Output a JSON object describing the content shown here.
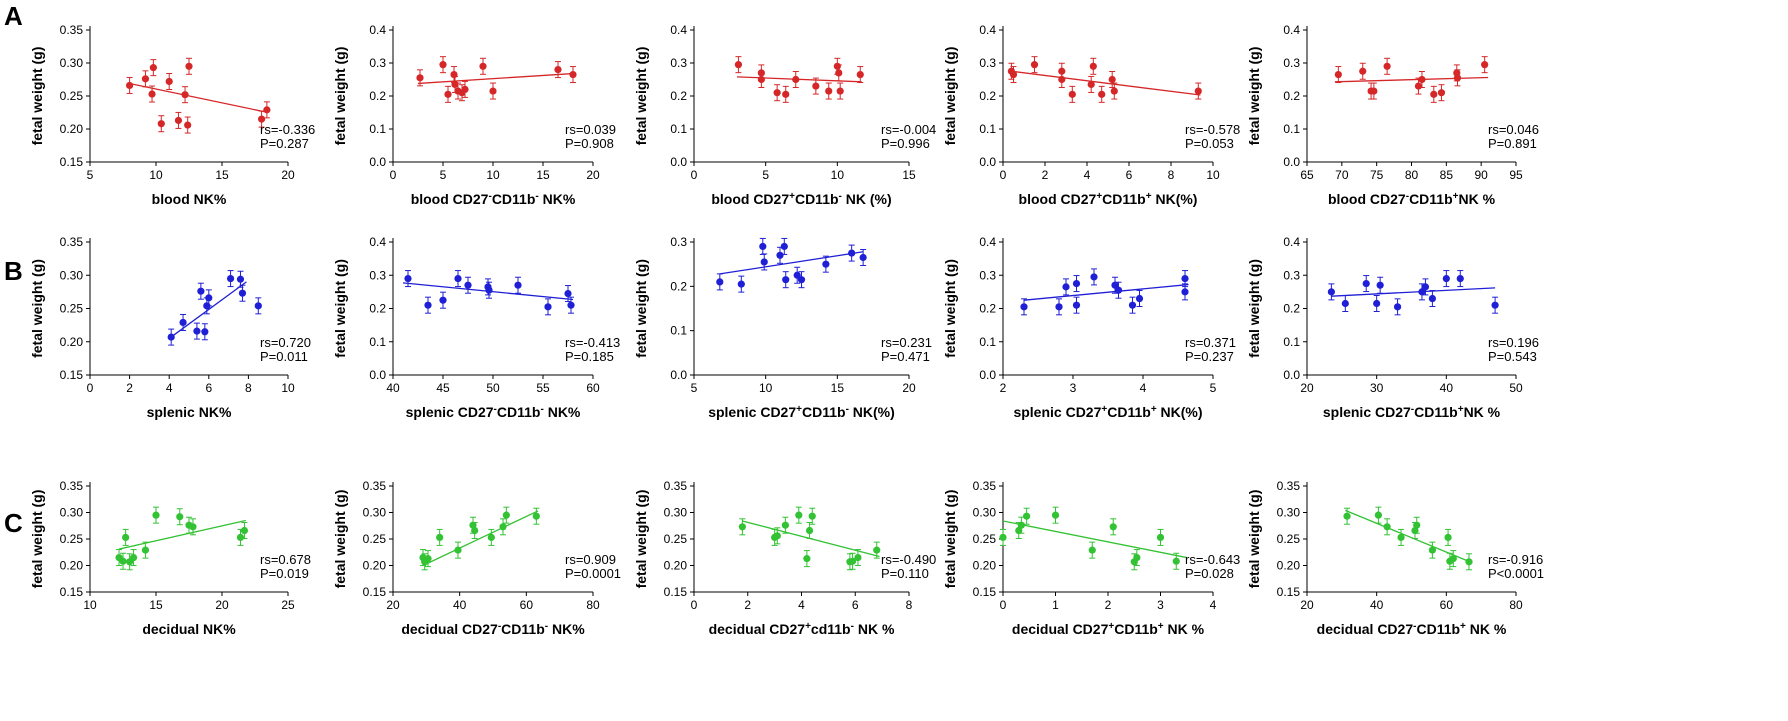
{
  "panel_labels": [
    "A",
    "B",
    "C"
  ],
  "colors": {
    "A": "#d62728",
    "B": "#1f1fd6",
    "C": "#33c233"
  },
  "chart_data": [
    {
      "type": "scatter",
      "row": "A",
      "col": 0,
      "color": "#d62728",
      "xlabel": "blood  NK%",
      "ylabel": "fetal weight (g)",
      "xlim": [
        5,
        20
      ],
      "ylim": [
        0.15,
        0.35
      ],
      "xticks": [
        "5",
        "10",
        "15",
        "20"
      ],
      "yticks": [
        "0.15",
        "0.20",
        "0.25",
        "0.30",
        "0.35"
      ],
      "x": [
        8.0,
        9.2,
        9.7,
        9.8,
        10.4,
        11.0,
        11.7,
        12.2,
        12.4,
        12.5,
        18.0,
        18.4
      ],
      "y": [
        0.266,
        0.276,
        0.253,
        0.293,
        0.208,
        0.272,
        0.213,
        0.252,
        0.206,
        0.295,
        0.215,
        0.229
      ],
      "fit": [
        [
          8.0,
          0.269
        ],
        [
          18.5,
          0.225
        ]
      ],
      "rs_text": "rs=-0.336",
      "p_text": "P=0.287"
    },
    {
      "type": "scatter",
      "row": "A",
      "col": 1,
      "color": "#d62728",
      "xlabel": "blood CD27-CD11b- NK%",
      "xlabel_parts": [
        [
          "blood CD27",
          ""
        ],
        [
          "-",
          "sup"
        ],
        [
          "CD11b",
          ""
        ],
        [
          "-",
          "sup"
        ],
        [
          " NK%",
          ""
        ]
      ],
      "ylabel": "fetal weight (g)",
      "xlim": [
        0,
        20
      ],
      "ylim": [
        0,
        0.4
      ],
      "xticks": [
        "0",
        "5",
        "10",
        "15",
        "20"
      ],
      "yticks": [
        "0.0",
        "0.1",
        "0.2",
        "0.3",
        "0.4"
      ],
      "x": [
        2.7,
        5.0,
        5.5,
        6.1,
        6.2,
        6.5,
        6.9,
        7.2,
        9.0,
        10.0,
        16.5,
        18.0
      ],
      "y": [
        0.255,
        0.295,
        0.205,
        0.265,
        0.235,
        0.215,
        0.21,
        0.22,
        0.29,
        0.215,
        0.28,
        0.265
      ],
      "fit": [
        [
          2.5,
          0.238
        ],
        [
          18.0,
          0.268
        ]
      ],
      "rs_text": "rs=0.039",
      "p_text": "P=0.908"
    },
    {
      "type": "scatter",
      "row": "A",
      "col": 2,
      "color": "#d62728",
      "xlabel": "blood CD27+CD11b- NK (%)",
      "xlabel_parts": [
        [
          "blood CD27",
          ""
        ],
        [
          "+",
          "sup"
        ],
        [
          "CD11b",
          ""
        ],
        [
          "-",
          "sup"
        ],
        [
          " NK (%)",
          ""
        ]
      ],
      "ylabel": "fetal weight (g)",
      "xlim": [
        0,
        15
      ],
      "ylim": [
        0,
        0.4
      ],
      "xticks": [
        "0",
        "5",
        "10",
        "15"
      ],
      "yticks": [
        "0.0",
        "0.1",
        "0.2",
        "0.3",
        "0.4"
      ],
      "x": [
        3.1,
        4.7,
        4.7,
        5.8,
        6.4,
        7.1,
        8.5,
        9.4,
        10.0,
        10.1,
        10.2,
        11.6
      ],
      "y": [
        0.295,
        0.27,
        0.25,
        0.21,
        0.205,
        0.25,
        0.23,
        0.215,
        0.29,
        0.27,
        0.215,
        0.265
      ],
      "fit": [
        [
          3.0,
          0.258
        ],
        [
          11.7,
          0.243
        ]
      ],
      "rs_text": "rs=-0.004",
      "p_text": "P=0.996"
    },
    {
      "type": "scatter",
      "row": "A",
      "col": 3,
      "color": "#d62728",
      "xlabel": "blood CD27+CD11b+ NK(%)",
      "xlabel_parts": [
        [
          "blood CD27",
          ""
        ],
        [
          "+",
          "sup"
        ],
        [
          "CD11b",
          ""
        ],
        [
          "+",
          "sup"
        ],
        [
          " NK(%)",
          ""
        ]
      ],
      "ylabel": "fetal weight (g)",
      "xlim": [
        0,
        10
      ],
      "ylim": [
        0,
        0.4
      ],
      "xticks": [
        "0",
        "2",
        "4",
        "6",
        "8",
        "10"
      ],
      "yticks": [
        "0.0",
        "0.1",
        "0.2",
        "0.3",
        "0.4"
      ],
      "x": [
        0.4,
        0.5,
        1.5,
        2.8,
        2.8,
        3.3,
        4.2,
        4.3,
        4.7,
        5.2,
        5.3,
        9.3
      ],
      "y": [
        0.275,
        0.265,
        0.295,
        0.275,
        0.25,
        0.205,
        0.235,
        0.29,
        0.205,
        0.25,
        0.215,
        0.215
      ],
      "fit": [
        [
          0.4,
          0.275
        ],
        [
          9.4,
          0.203
        ]
      ],
      "rs_text": "rs=-0.578",
      "p_text": "P=0.053"
    },
    {
      "type": "scatter",
      "row": "A",
      "col": 4,
      "color": "#d62728",
      "xlabel": "blood CD27-CD11b+NK %",
      "xlabel_parts": [
        [
          "blood CD27",
          ""
        ],
        [
          "-",
          "sup"
        ],
        [
          "CD11b",
          ""
        ],
        [
          "+",
          "sup"
        ],
        [
          "NK %",
          ""
        ]
      ],
      "ylabel": "fetal weight (g)",
      "xlim": [
        65,
        95
      ],
      "ylim": [
        0,
        0.4
      ],
      "xticks": [
        "65",
        "70",
        "75",
        "80",
        "85",
        "90",
        "95"
      ],
      "yticks": [
        "0.0",
        "0.1",
        "0.2",
        "0.3",
        "0.4"
      ],
      "x": [
        69.5,
        73.0,
        74.2,
        74.6,
        76.5,
        81.0,
        81.5,
        83.2,
        84.3,
        86.5,
        86.6,
        90.5
      ],
      "y": [
        0.265,
        0.275,
        0.215,
        0.215,
        0.29,
        0.23,
        0.25,
        0.205,
        0.21,
        0.27,
        0.255,
        0.295
      ],
      "fit": [
        [
          69.0,
          0.243
        ],
        [
          91.0,
          0.256
        ]
      ],
      "rs_text": "rs=0.046",
      "p_text": "P=0.891"
    },
    {
      "type": "scatter",
      "row": "B",
      "col": 0,
      "color": "#1f1fd6",
      "xlabel": "splenic NK%",
      "ylabel": "fetal weight (g)",
      "xlim": [
        0,
        10
      ],
      "ylim": [
        0.15,
        0.35
      ],
      "xticks": [
        "0",
        "2",
        "4",
        "6",
        "8",
        "10"
      ],
      "yticks": [
        "0.15",
        "0.20",
        "0.25",
        "0.30",
        "0.35"
      ],
      "x": [
        4.1,
        4.7,
        5.4,
        5.6,
        5.8,
        5.9,
        6.0,
        7.1,
        7.6,
        7.7,
        8.5
      ],
      "y": [
        0.207,
        0.229,
        0.216,
        0.276,
        0.215,
        0.254,
        0.266,
        0.295,
        0.294,
        0.273,
        0.254
      ],
      "fit": [
        [
          4.0,
          0.205
        ],
        [
          7.9,
          0.29
        ]
      ],
      "rs_text": "rs=0.720",
      "p_text": "P=0.011"
    },
    {
      "type": "scatter",
      "row": "B",
      "col": 1,
      "color": "#1f1fd6",
      "xlabel": "splenic CD27-CD11b- NK%",
      "xlabel_parts": [
        [
          "splenic CD27",
          ""
        ],
        [
          "-",
          "sup"
        ],
        [
          "CD11b",
          ""
        ],
        [
          "-",
          "sup"
        ],
        [
          " NK%",
          ""
        ]
      ],
      "ylabel": "fetal weight (g)",
      "xlim": [
        40,
        60
      ],
      "ylim": [
        0,
        0.4
      ],
      "xticks": [
        "40",
        "45",
        "50",
        "55",
        "60"
      ],
      "yticks": [
        "0.0",
        "0.1",
        "0.2",
        "0.3",
        "0.4"
      ],
      "x": [
        41.5,
        43.5,
        45.0,
        46.5,
        47.5,
        49.5,
        49.6,
        52.5,
        55.5,
        57.5,
        57.8
      ],
      "y": [
        0.29,
        0.21,
        0.225,
        0.29,
        0.27,
        0.265,
        0.255,
        0.27,
        0.205,
        0.245,
        0.21
      ],
      "fit": [
        [
          41.0,
          0.277
        ],
        [
          58.0,
          0.227
        ]
      ],
      "rs_text": "rs=-0.413",
      "p_text": "P=0.185"
    },
    {
      "type": "scatter",
      "row": "B",
      "col": 2,
      "color": "#1f1fd6",
      "xlabel": "splenic CD27+CD11b- NK(%)",
      "xlabel_parts": [
        [
          "splenic CD27",
          ""
        ],
        [
          "+",
          "sup"
        ],
        [
          "CD11b",
          ""
        ],
        [
          "-",
          "sup"
        ],
        [
          " NK(%)",
          ""
        ]
      ],
      "ylabel": "fetal weight (g)",
      "xlim": [
        5,
        20
      ],
      "ylim": [
        0,
        0.3
      ],
      "xticks": [
        "5",
        "10",
        "15",
        "20"
      ],
      "yticks": [
        "0.0",
        "0.1",
        "0.2",
        "0.3"
      ],
      "x": [
        6.8,
        8.3,
        9.8,
        9.9,
        11.0,
        11.3,
        11.4,
        12.2,
        12.5,
        14.2,
        16.0,
        16.8
      ],
      "y": [
        0.21,
        0.205,
        0.29,
        0.255,
        0.27,
        0.29,
        0.215,
        0.225,
        0.215,
        0.25,
        0.275,
        0.265
      ],
      "fit": [
        [
          6.8,
          0.228
        ],
        [
          16.8,
          0.278
        ]
      ],
      "rs_text": "rs=0.231",
      "p_text": "P=0.471"
    },
    {
      "type": "scatter",
      "row": "B",
      "col": 3,
      "color": "#1f1fd6",
      "xlabel": "splenic CD27+CD11b+ NK(%)",
      "xlabel_parts": [
        [
          "splenic CD27",
          ""
        ],
        [
          "+",
          "sup"
        ],
        [
          "CD11b",
          ""
        ],
        [
          "+",
          "sup"
        ],
        [
          " NK(%)",
          ""
        ]
      ],
      "ylabel": "fetal weight (g)",
      "xlim": [
        2,
        5
      ],
      "ylim": [
        0,
        0.4
      ],
      "xticks": [
        "2",
        "3",
        "4",
        "5"
      ],
      "yticks": [
        "0.0",
        "0.1",
        "0.2",
        "0.3",
        "0.4"
      ],
      "x": [
        2.3,
        2.8,
        2.9,
        3.05,
        3.05,
        3.3,
        3.6,
        3.65,
        3.85,
        3.95,
        4.6,
        4.6
      ],
      "y": [
        0.205,
        0.205,
        0.265,
        0.21,
        0.275,
        0.295,
        0.27,
        0.255,
        0.21,
        0.23,
        0.29,
        0.25
      ],
      "fit": [
        [
          2.3,
          0.225
        ],
        [
          4.65,
          0.272
        ]
      ],
      "rs_text": "rs=0.371",
      "p_text": "P=0.237"
    },
    {
      "type": "scatter",
      "row": "B",
      "col": 4,
      "color": "#1f1fd6",
      "xlabel": "splenic CD27-CD11b+NK %",
      "xlabel_parts": [
        [
          "splenic CD27",
          ""
        ],
        [
          "-",
          "sup"
        ],
        [
          "CD11b",
          ""
        ],
        [
          "+",
          "sup"
        ],
        [
          "NK %",
          ""
        ]
      ],
      "ylabel": "fetal weight (g)",
      "xlim": [
        20,
        50
      ],
      "ylim": [
        0,
        0.4
      ],
      "xticks": [
        "20",
        "30",
        "40",
        "50"
      ],
      "yticks": [
        "0.0",
        "0.1",
        "0.2",
        "0.3",
        "0.4"
      ],
      "x": [
        23.5,
        25.5,
        28.5,
        30.0,
        30.5,
        33.0,
        36.5,
        37.0,
        38.0,
        40.0,
        42.0,
        47.0
      ],
      "y": [
        0.25,
        0.215,
        0.275,
        0.215,
        0.27,
        0.205,
        0.25,
        0.265,
        0.23,
        0.29,
        0.29,
        0.21
      ],
      "fit": [
        [
          23.5,
          0.237
        ],
        [
          47.0,
          0.262
        ]
      ],
      "rs_text": "rs=0.196",
      "p_text": "P=0.543"
    },
    {
      "type": "scatter",
      "row": "C",
      "col": 0,
      "color": "#33c233",
      "xlabel": "decidual NK%",
      "ylabel": "fetal weight (g)",
      "xlim": [
        10,
        25
      ],
      "ylim": [
        0.15,
        0.35
      ],
      "xticks": [
        "10",
        "15",
        "20",
        "25"
      ],
      "yticks": [
        "0.15",
        "0.20",
        "0.25",
        "0.30",
        "0.35"
      ],
      "x": [
        12.2,
        12.5,
        12.7,
        13.0,
        13.3,
        14.2,
        15.0,
        16.8,
        17.5,
        17.8,
        21.4,
        21.7
      ],
      "y": [
        0.215,
        0.208,
        0.253,
        0.207,
        0.215,
        0.229,
        0.295,
        0.292,
        0.276,
        0.273,
        0.253,
        0.266
      ],
      "fit": [
        [
          12.2,
          0.231
        ],
        [
          21.8,
          0.285
        ]
      ],
      "rs_text": "rs=0.678",
      "p_text": "P=0.019"
    },
    {
      "type": "scatter",
      "row": "C",
      "col": 1,
      "color": "#33c233",
      "xlabel": "decidual CD27-CD11b- NK%",
      "xlabel_parts": [
        [
          "decidual CD27",
          ""
        ],
        [
          "-",
          "sup"
        ],
        [
          "CD11b",
          ""
        ],
        [
          "-",
          "sup"
        ],
        [
          " NK%",
          ""
        ]
      ],
      "ylabel": "fetal weight (g)",
      "xlim": [
        20,
        80
      ],
      "ylim": [
        0.15,
        0.35
      ],
      "xticks": [
        "20",
        "40",
        "60",
        "80"
      ],
      "yticks": [
        "0.15",
        "0.20",
        "0.25",
        "0.30",
        "0.35"
      ],
      "x": [
        29.0,
        29.5,
        30.5,
        34.0,
        39.5,
        44.0,
        44.5,
        49.5,
        53.0,
        54.0,
        63.0
      ],
      "y": [
        0.215,
        0.207,
        0.213,
        0.253,
        0.229,
        0.276,
        0.266,
        0.253,
        0.273,
        0.295,
        0.293
      ],
      "fit": [
        [
          29.0,
          0.2
        ],
        [
          63.5,
          0.303
        ]
      ],
      "rs_text": "rs=0.909",
      "p_text": "P=0.0001"
    },
    {
      "type": "scatter",
      "row": "C",
      "col": 2,
      "color": "#33c233",
      "xlabel": "decidual CD27+cd11b- NK %",
      "xlabel_parts": [
        [
          "decidual CD27",
          ""
        ],
        [
          "+",
          "sup"
        ],
        [
          "cd11b",
          ""
        ],
        [
          "-",
          "sup"
        ],
        [
          " NK %",
          ""
        ]
      ],
      "ylabel": "fetal weight (g)",
      "xlim": [
        0,
        8
      ],
      "ylim": [
        0.15,
        0.35
      ],
      "xticks": [
        "0",
        "2",
        "4",
        "6",
        "8"
      ],
      "yticks": [
        "0.15",
        "0.20",
        "0.25",
        "0.30",
        "0.35"
      ],
      "x": [
        1.8,
        3.0,
        3.1,
        3.4,
        3.9,
        4.2,
        4.3,
        4.4,
        5.8,
        5.9,
        6.1,
        6.8
      ],
      "y": [
        0.273,
        0.253,
        0.256,
        0.276,
        0.295,
        0.213,
        0.266,
        0.293,
        0.207,
        0.208,
        0.215,
        0.229
      ],
      "fit": [
        [
          1.8,
          0.284
        ],
        [
          6.9,
          0.217
        ]
      ],
      "rs_text": "rs=-0.490",
      "p_text": "P=0.110"
    },
    {
      "type": "scatter",
      "row": "C",
      "col": 3,
      "color": "#33c233",
      "xlabel": "decidual CD27+CD11b+ NK %",
      "xlabel_parts": [
        [
          "decidual CD27",
          ""
        ],
        [
          "+",
          "sup"
        ],
        [
          "CD11b",
          ""
        ],
        [
          "+",
          "sup"
        ],
        [
          " NK %",
          ""
        ]
      ],
      "ylabel": "fetal weight (g)",
      "xlim": [
        0,
        4
      ],
      "ylim": [
        0.15,
        0.35
      ],
      "xticks": [
        "0",
        "1",
        "2",
        "3",
        "4"
      ],
      "yticks": [
        "0.15",
        "0.20",
        "0.25",
        "0.30",
        "0.35"
      ],
      "x": [
        0.0,
        0.3,
        0.35,
        0.45,
        1.0,
        1.7,
        2.1,
        2.5,
        2.55,
        3.0,
        3.3
      ],
      "y": [
        0.253,
        0.266,
        0.276,
        0.293,
        0.295,
        0.229,
        0.273,
        0.207,
        0.215,
        0.253,
        0.208
      ],
      "fit": [
        [
          0.0,
          0.284
        ],
        [
          3.5,
          0.215
        ]
      ],
      "rs_text": "rs=-0.643",
      "p_text": "P=0.028"
    },
    {
      "type": "scatter",
      "row": "C",
      "col": 4,
      "color": "#33c233",
      "xlabel": "decidual CD27-CD11b+ NK %",
      "xlabel_parts": [
        [
          "decidual CD27",
          ""
        ],
        [
          "-",
          "sup"
        ],
        [
          "CD11b",
          ""
        ],
        [
          "+",
          "sup"
        ],
        [
          " NK %",
          ""
        ]
      ],
      "ylabel": "fetal weight (g)",
      "xlim": [
        20,
        80
      ],
      "ylim": [
        0.15,
        0.35
      ],
      "xticks": [
        "20",
        "40",
        "60",
        "80"
      ],
      "yticks": [
        "0.15",
        "0.20",
        "0.25",
        "0.30",
        "0.35"
      ],
      "x": [
        31.5,
        40.5,
        43.0,
        47.0,
        51.0,
        51.5,
        56.0,
        60.5,
        61.0,
        62.0,
        66.5
      ],
      "y": [
        0.293,
        0.295,
        0.273,
        0.253,
        0.266,
        0.276,
        0.229,
        0.253,
        0.208,
        0.213,
        0.207
      ],
      "fit": [
        [
          31.0,
          0.304
        ],
        [
          67.5,
          0.205
        ]
      ],
      "rs_text": "rs=-0.916",
      "p_text": "P<0.0001"
    }
  ]
}
